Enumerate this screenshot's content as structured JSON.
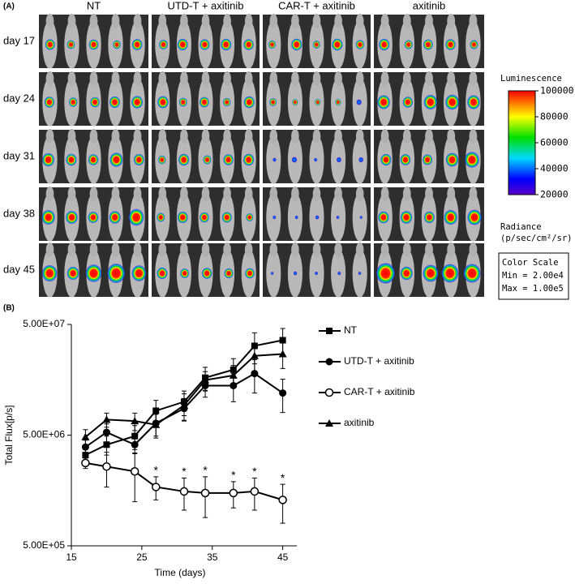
{
  "chart_data": [
    {
      "type": "image-grid",
      "panel_label": "(A)",
      "columns": [
        "NT",
        "UTD-T + axitinib",
        "CAR-T + axitinib",
        "axitinib"
      ],
      "rows": [
        "day 17",
        "day 24",
        "day 31",
        "day 38",
        "day 45"
      ],
      "colorbar": {
        "title": "Luminescence",
        "lim": [
          20000,
          100000
        ],
        "ticks": [
          20000,
          40000,
          60000,
          80000,
          100000
        ],
        "unit_lines": [
          "Radiance",
          "(p/sec/cm²/sr)"
        ],
        "scale_lines": [
          "Color Scale",
          "Min = 2.00e4",
          "Max = 1.00e5"
        ]
      }
    },
    {
      "type": "line",
      "panel_label": "(B)",
      "x_label": "Time (days)",
      "y_label": "Total Flux[p/s]",
      "log_y": true,
      "xlim": [
        15,
        47
      ],
      "xticks": [
        15,
        25,
        35,
        45
      ],
      "ylim": [
        500000,
        50000000
      ],
      "yticks": [
        {
          "value": 500000,
          "label": "5.00E+05"
        },
        {
          "value": 5000000,
          "label": "5.00E+06"
        },
        {
          "value": 50000000,
          "label": "5.00E+07"
        }
      ],
      "x": [
        17,
        20,
        24,
        27,
        31,
        34,
        38,
        41,
        45
      ],
      "series": [
        {
          "name": "NT",
          "color": "#000000",
          "marker": "square",
          "values": [
            3300000,
            4100000,
            4900000,
            8300000,
            10000000,
            16500000,
            19500000,
            32000000,
            36000000
          ],
          "errors": [
            400000,
            800000,
            1200000,
            2000000,
            2500000,
            4000000,
            5000000,
            10000000,
            10000000
          ]
        },
        {
          "name": "UTD-T + axitinib",
          "color": "#000000",
          "marker": "circle",
          "values": [
            3900000,
            5300000,
            4100000,
            6400000,
            8700000,
            14000000,
            14000000,
            18000000,
            12000000
          ],
          "errors": [
            600000,
            1000000,
            700000,
            1500000,
            2000000,
            3000000,
            4000000,
            6000000,
            4000000
          ]
        },
        {
          "name": "CAR-T + axitinib",
          "color": "#000000",
          "marker": "open-circle",
          "values": [
            2800000,
            2600000,
            2350000,
            1700000,
            1550000,
            1500000,
            1500000,
            1550000,
            1300000
          ],
          "errors": [
            300000,
            900000,
            1100000,
            400000,
            500000,
            600000,
            400000,
            500000,
            500000
          ]
        },
        {
          "name": "axitinib",
          "color": "#000000",
          "marker": "triangle",
          "values": [
            4800000,
            6900000,
            6700000,
            6200000,
            9300000,
            15700000,
            17300000,
            26000000,
            27000000
          ],
          "errors": [
            800000,
            1000000,
            1200000,
            1500000,
            2500000,
            3000000,
            4000000,
            7000000,
            7000000
          ]
        }
      ],
      "annotations": [
        {
          "x": 27,
          "text": "*"
        },
        {
          "x": 31,
          "text": "*"
        },
        {
          "x": 34,
          "text": "*"
        },
        {
          "x": 38,
          "text": "*"
        },
        {
          "x": 41,
          "text": "*"
        },
        {
          "x": 45,
          "text": "*"
        }
      ],
      "annotation_series": 2
    }
  ]
}
